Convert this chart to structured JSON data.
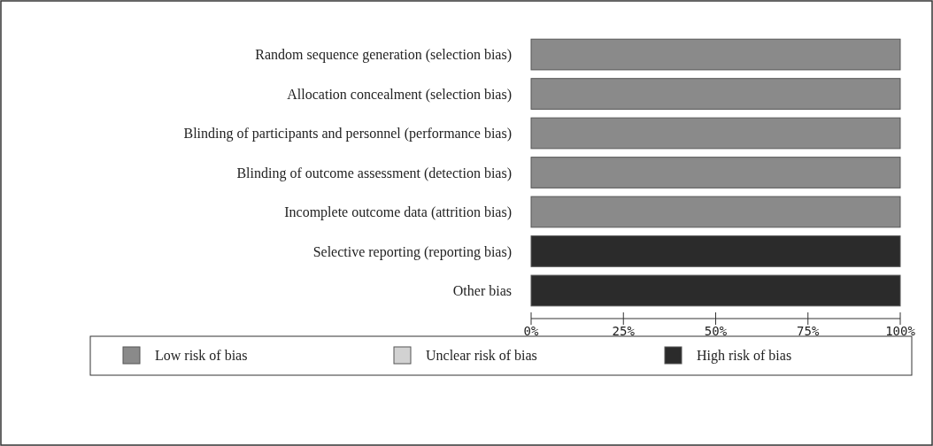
{
  "chart_data": {
    "type": "bar",
    "orientation": "horizontal",
    "stacked": true,
    "categories": [
      "Random sequence generation (selection bias)",
      "Allocation concealment (selection bias)",
      "Blinding of participants and personnel (performance bias)",
      "Blinding of outcome assessment (detection bias)",
      "Incomplete outcome data (attrition bias)",
      "Selective reporting (reporting bias)",
      "Other bias"
    ],
    "series": [
      {
        "name": "Low risk of bias",
        "color": "#8a8a8a",
        "values": [
          100,
          100,
          100,
          100,
          100,
          0,
          0
        ]
      },
      {
        "name": "Unclear risk of bias",
        "color": "#d2d2d2",
        "values": [
          0,
          0,
          0,
          0,
          0,
          0,
          0
        ]
      },
      {
        "name": "High risk of bias",
        "color": "#2b2b2b",
        "values": [
          0,
          0,
          0,
          0,
          0,
          100,
          100
        ]
      }
    ],
    "xlim": [
      0,
      100
    ],
    "xticks": [
      {
        "value": 0,
        "label": "0%"
      },
      {
        "value": 25,
        "label": "25%"
      },
      {
        "value": 50,
        "label": "50%"
      },
      {
        "value": 75,
        "label": "75%"
      },
      {
        "value": 100,
        "label": "100%"
      }
    ],
    "legend": "bottom",
    "grid": false
  }
}
